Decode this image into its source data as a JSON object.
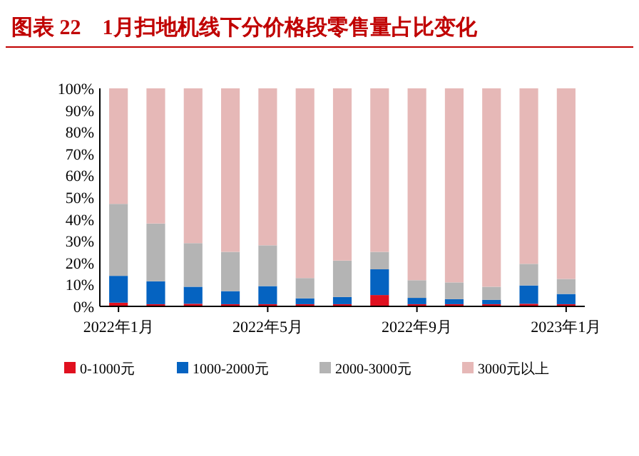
{
  "chart_data": {
    "type": "bar",
    "title": "图表 22　1月扫地机线下分价格段零售量占比变化",
    "stacked": true,
    "legend": "bottom",
    "categories": [
      "2022年1月",
      null,
      null,
      null,
      "2022年5月",
      null,
      null,
      null,
      "2022年9月",
      null,
      null,
      null,
      "2023年1月"
    ],
    "ylim": [
      0,
      100
    ],
    "yticks": [
      {
        "value": 0,
        "label": "0%"
      },
      {
        "value": 10,
        "label": "10%"
      },
      {
        "value": 20,
        "label": "20%"
      },
      {
        "value": 30,
        "label": "30%"
      },
      {
        "value": 40,
        "label": "40%"
      },
      {
        "value": 50,
        "label": "50%"
      },
      {
        "value": 60,
        "label": "60%"
      },
      {
        "value": 70,
        "label": "70%"
      },
      {
        "value": 80,
        "label": "80%"
      },
      {
        "value": 90,
        "label": "90%"
      },
      {
        "value": 100,
        "label": "100%"
      }
    ],
    "series": [
      {
        "name": "0-1000元",
        "color": "#e0101f",
        "values": [
          1.7,
          1,
          1.2,
          1,
          1,
          1,
          1,
          5.2,
          1,
          1,
          1,
          1.2,
          1
        ]
      },
      {
        "name": "1000-2000元",
        "color": "#0563c1",
        "values": [
          12.3,
          10.5,
          7.8,
          6,
          8.3,
          2.7,
          3.3,
          11.8,
          2.9,
          2.3,
          2,
          8.4,
          4.7
        ]
      },
      {
        "name": "2000-3000元",
        "color": "#b4b4b4",
        "values": [
          33,
          26.5,
          20,
          18,
          18.7,
          9.3,
          16.7,
          8,
          8.1,
          7.7,
          6,
          9.9,
          6.9
        ]
      },
      {
        "name": "3000元以上",
        "color": "#e6b8b7",
        "values": [
          53,
          62,
          71,
          75,
          72,
          87,
          79,
          75,
          88,
          89,
          91,
          80.5,
          87.4
        ]
      }
    ]
  }
}
